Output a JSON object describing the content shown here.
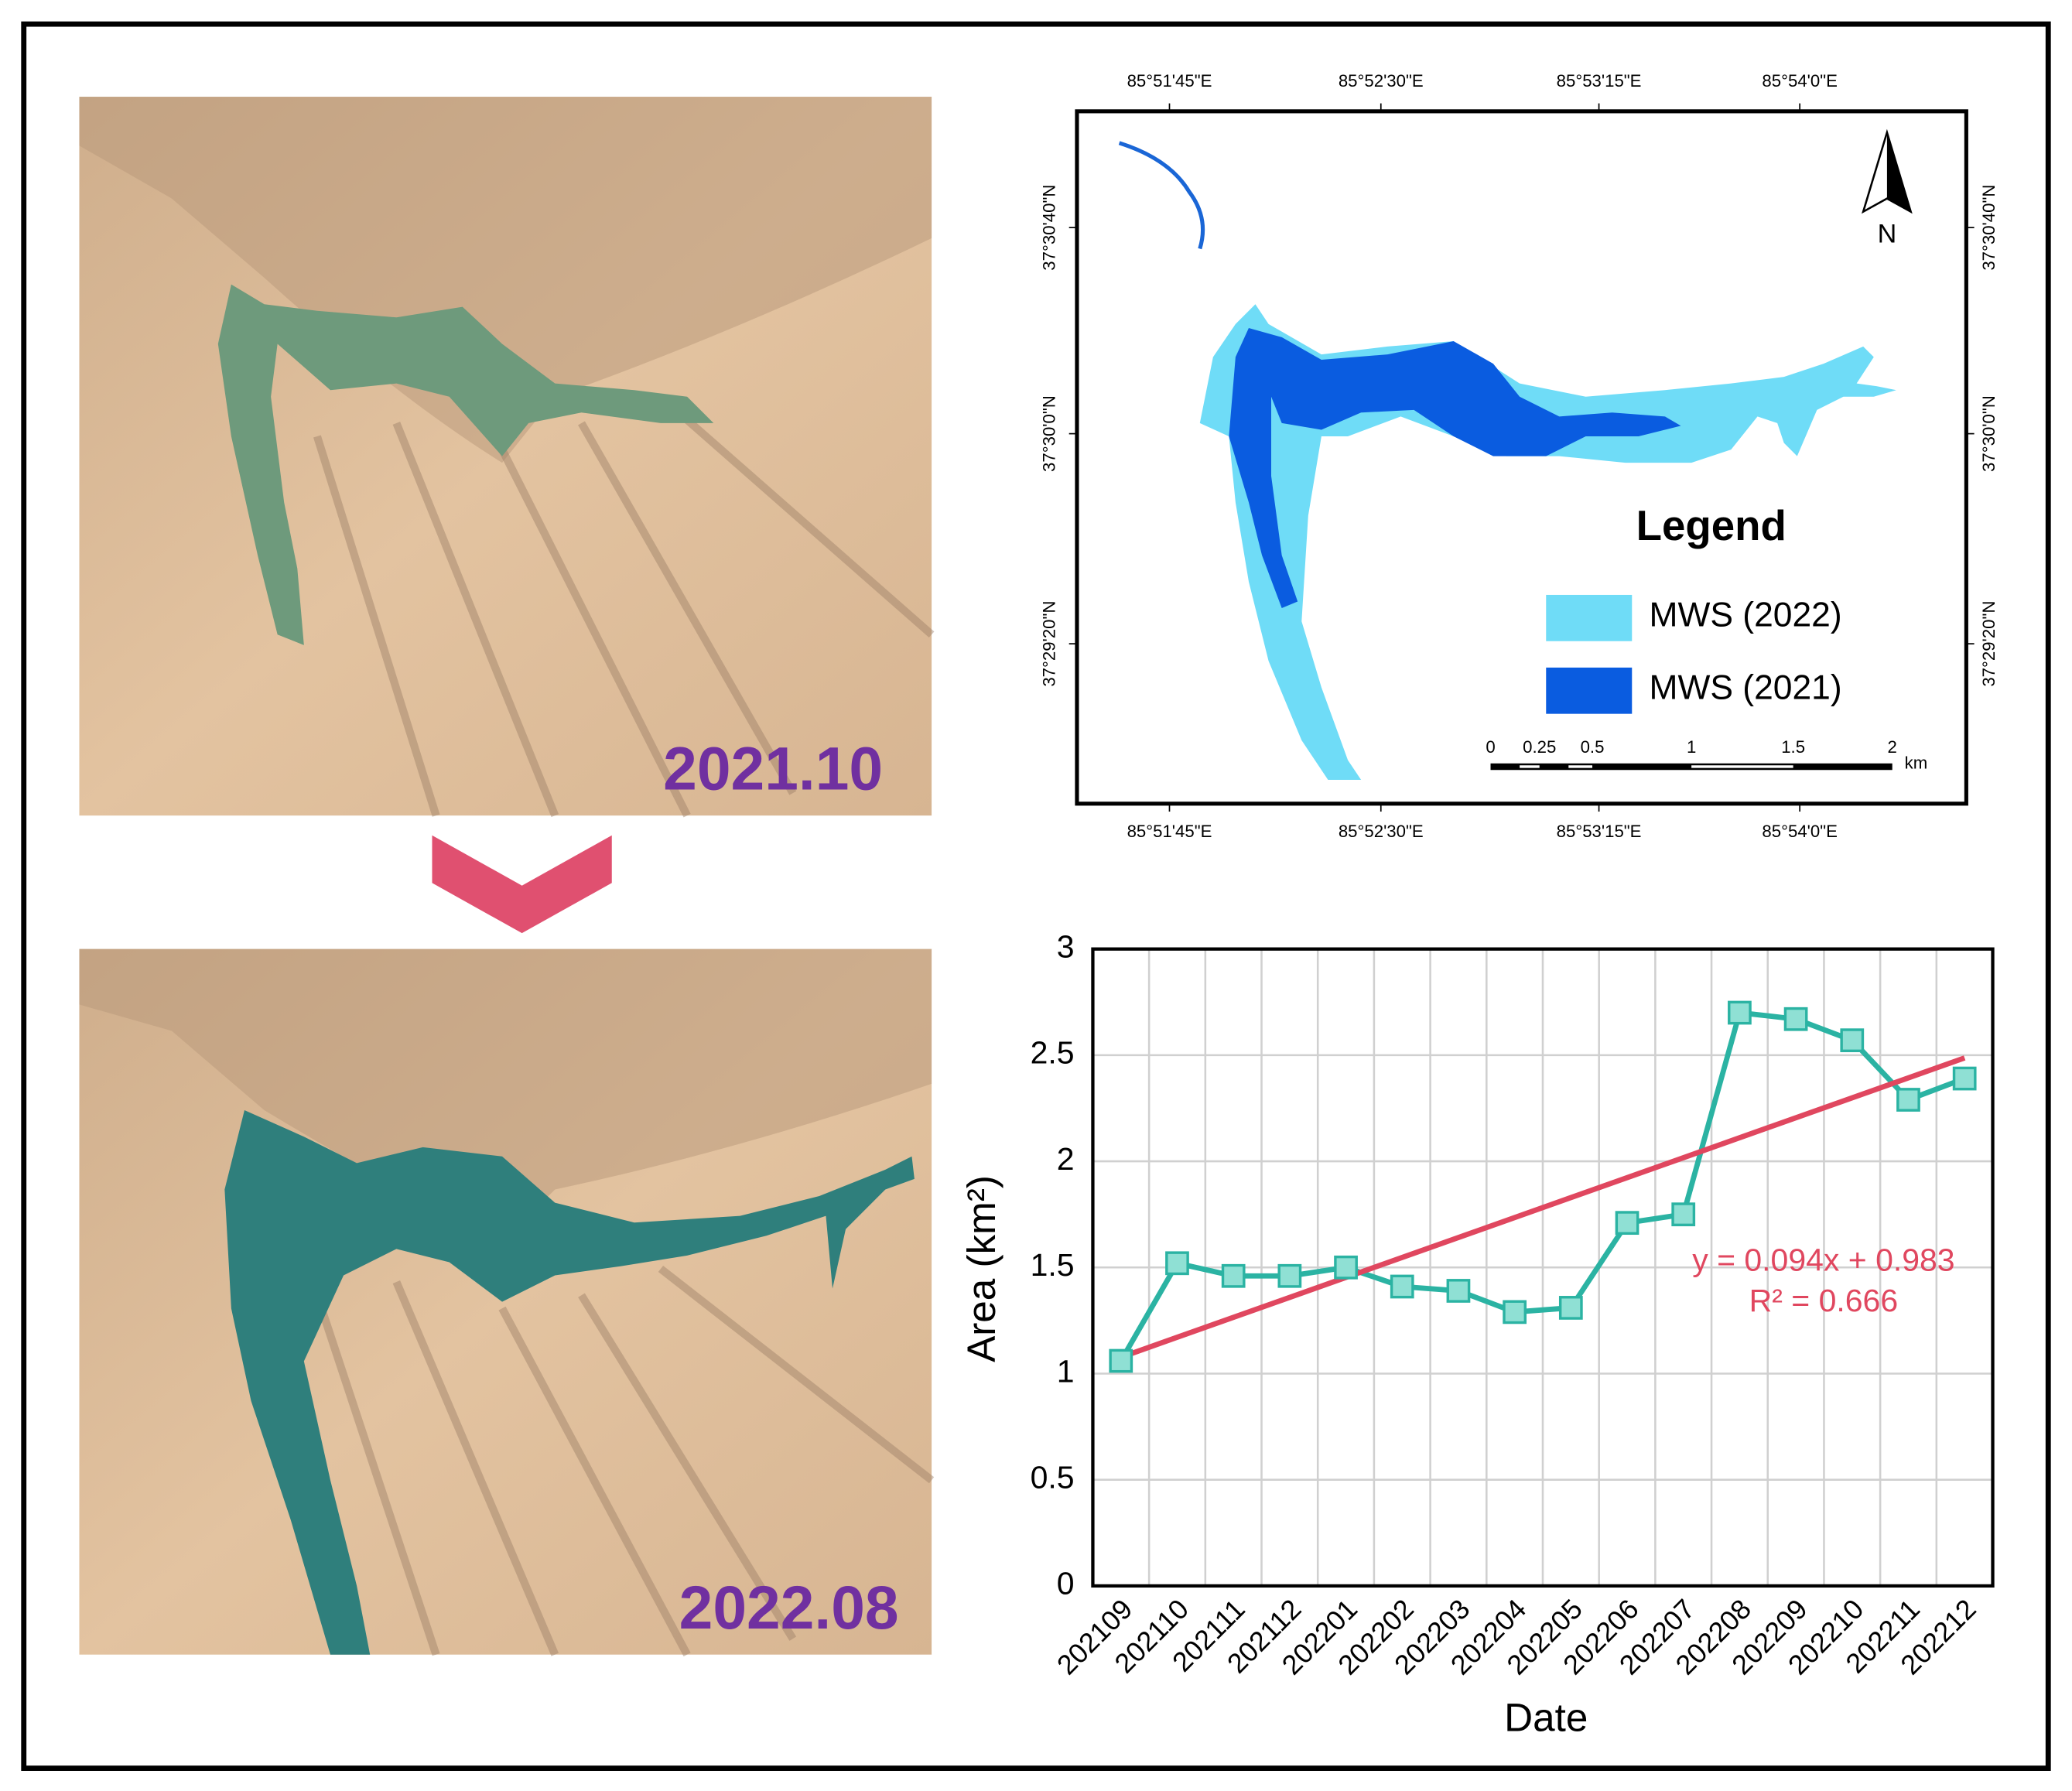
{
  "images": [
    {
      "label": "2021.10"
    },
    {
      "label": "2022.08"
    }
  ],
  "map": {
    "top_labels": [
      "85°51'45\"E",
      "85°52'30\"E",
      "85°53'15\"E",
      "85°54'0\"E"
    ],
    "bottom_labels": [
      "85°51'45\"E",
      "85°52'30\"E",
      "85°53'15\"E",
      "85°54'0\"E"
    ],
    "left_labels": [
      "37°30'40\"N",
      "37°30'0\"N",
      "37°29'20\"N"
    ],
    "right_labels": [
      "37°30'40\"N",
      "37°30'0\"N",
      "37°29'20\"N"
    ],
    "north": "N",
    "legend": {
      "title": "Legend",
      "items": [
        {
          "name": "MWS (2022)",
          "color": "#6fdcf7"
        },
        {
          "name": "MWS (2021)",
          "color": "#0a5ce0"
        }
      ]
    },
    "scale": {
      "labels": [
        "0",
        "0.25",
        "0.5",
        "1",
        "1.5",
        "2"
      ],
      "unit": "km"
    }
  },
  "chart_data": {
    "type": "line",
    "x_label": "Date",
    "y_label": "Area (km²)",
    "categories": [
      "202109",
      "202110",
      "202111",
      "202112",
      "202201",
      "202202",
      "202203",
      "202204",
      "202205",
      "202206",
      "202207",
      "202208",
      "202209",
      "202210",
      "202211",
      "202212"
    ],
    "values": [
      1.06,
      1.52,
      1.46,
      1.46,
      1.5,
      1.41,
      1.39,
      1.29,
      1.31,
      1.71,
      1.75,
      2.7,
      2.67,
      2.57,
      2.29,
      2.39
    ],
    "color": "#2bb3a3",
    "marker_fill": "#8fe0d4",
    "ylim": [
      0,
      3
    ],
    "yticks": [
      0,
      0.5,
      1,
      1.5,
      2,
      2.5,
      3
    ],
    "grid": true,
    "trendline": {
      "slope": 0.094,
      "intercept": 0.983,
      "color": "#e0475f",
      "labels": [
        "y = 0.094x + 0.983",
        "R² = 0.666"
      ]
    }
  }
}
